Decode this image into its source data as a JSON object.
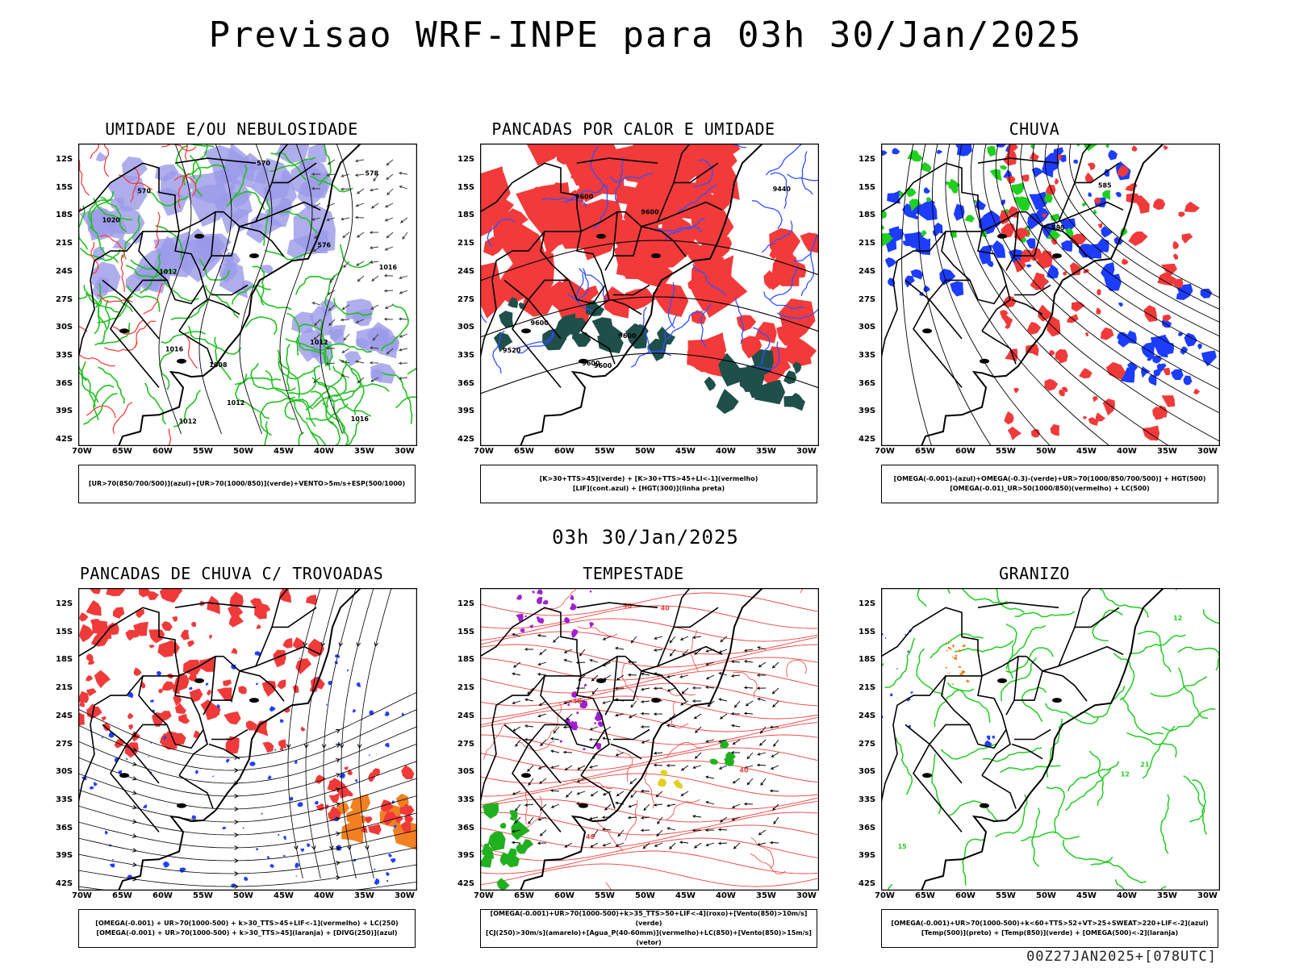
{
  "main_title": "Previsao WRF-INPE  para 03h 30/Jan/2025",
  "mid_title": "03h 30/Jan/2025",
  "footer": "00Z27JAN2025+[078UTC]",
  "axes": {
    "lat_labels": [
      "12S",
      "15S",
      "18S",
      "21S",
      "24S",
      "27S",
      "30S",
      "33S",
      "36S",
      "39S",
      "42S"
    ],
    "lon_labels": [
      "70W",
      "65W",
      "60W",
      "55W",
      "50W",
      "45W",
      "40W",
      "35W",
      "30W"
    ]
  },
  "panels": [
    {
      "title": "UMIDADE E/OU NEBULOSIDADE",
      "legend": [
        "[UR>70(850/700/500)](azul)+[UR>70(1000/850)](verde)+VENTO>5m/s+ESP(500/1000)"
      ],
      "contour_labels": [
        "1008",
        "1012",
        "1012",
        "1012",
        "1012",
        "1016",
        "1016",
        "1016",
        "1020",
        "576",
        "570",
        "570",
        "578"
      ],
      "colors": {
        "blue": "#9a9ae8",
        "green": "#22c022",
        "red": "#ff3030"
      }
    },
    {
      "title": "PANCADAS POR CALOR E UMIDADE",
      "legend": [
        "[K>30+TTS>45](verde) + [K>30+TTS>45+LI<-1](vermelho)",
        "[LIF](cont.azul) + [HGT(300)](linha preta)"
      ],
      "contour_labels": [
        "9600",
        "9600",
        "9600",
        "9600",
        "9600",
        "9600",
        "9520",
        "9440"
      ],
      "colors": {
        "red": "#f23a3a",
        "teal": "#1f4f4a",
        "blue": "#3050ff"
      }
    },
    {
      "title": "CHUVA",
      "legend": [
        "[OMEGA(-0.001)-(azul)+OMEGA(-0.3)-(verde)+UR>70(1000/850/700/500)] + HGT(500)",
        "[OMEGA(-0.01)_UR>50(1000/850)(vermelho) + LC(500)"
      ],
      "contour_labels": [
        "585",
        "585"
      ],
      "colors": {
        "blue": "#1c3cff",
        "green": "#20d020",
        "red": "#f03a3a"
      }
    },
    {
      "title": "PANCADAS DE CHUVA C/ TROVOADAS",
      "legend": [
        "[OMEGA(-0.001) + UR>70(1000-500) + k>30_TTS>45+LIF<-1](vermelho) + LC(250)",
        "[OMEGA(-0.001) + UR>70(1000-500) + k>30_TTS>45](laranja) + [DIVG(250)](azul)"
      ],
      "contour_labels": [],
      "colors": {
        "red": "#f03a3a",
        "orange": "#f08020",
        "blue": "#2040ff"
      }
    },
    {
      "title": "TEMPESTADE",
      "legend": [
        "[OMEGA(-0.001)+UR>70(1000-500)+k>35_TTS>50+LIF<-4](roxo)+[Vento(850)>10m/s](verde)",
        "[CJ(250)>30m/s](amarelo)+[Agua_P(40-60mm)](vermelho)+LC(850)+[Vento(850)>15m/s](vetor)"
      ],
      "contour_labels": [
        "40",
        "40",
        "40",
        "40",
        "40"
      ],
      "colors": {
        "red": "#f04040",
        "purple": "#a020d0",
        "green": "#20b020",
        "yellow": "#e0d020"
      }
    },
    {
      "title": "GRANIZO",
      "legend": [
        "[OMEGA(-0.001)+UR>70(1000-500)+k<60+TTS>52+VT>25+SWEAT>220+LIF<-2](azul)",
        "[Temp(500)](preto) + [Temp(850)](verde) + [OMEGA(500)<-2](laranja)"
      ],
      "contour_labels": [
        "12",
        "12",
        "15",
        "21"
      ],
      "colors": {
        "green": "#22cc22",
        "orange": "#f08020",
        "blue": "#2040ff"
      }
    }
  ]
}
